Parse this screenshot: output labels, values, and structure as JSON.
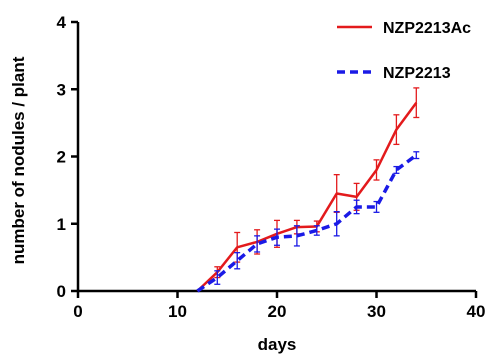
{
  "chart_data": {
    "type": "line",
    "xlabel": "days",
    "ylabel": "number of nodules / plant",
    "xlim": [
      0,
      40
    ],
    "ylim": [
      0,
      4
    ],
    "xticks": [
      0,
      10,
      20,
      30,
      40
    ],
    "yticks": [
      0,
      1,
      2,
      3,
      4
    ],
    "grid": false,
    "legend_position": "top-right",
    "series": [
      {
        "name": "NZP2213Ac",
        "color": "#e31a1c",
        "line_style": "solid",
        "x": [
          12,
          14,
          16,
          18,
          20,
          22,
          24,
          26,
          28,
          30,
          32,
          34
        ],
        "y": [
          0,
          0.28,
          0.65,
          0.73,
          0.85,
          0.95,
          0.96,
          1.45,
          1.4,
          1.8,
          2.4,
          2.8
        ],
        "error": [
          0,
          0.08,
          0.22,
          0.18,
          0.2,
          0.1,
          0.08,
          0.28,
          0.2,
          0.15,
          0.22,
          0.22
        ]
      },
      {
        "name": "NZP2213",
        "color": "#1a1ae6",
        "line_style": "dashed",
        "x": [
          12,
          14,
          16,
          18,
          20,
          22,
          24,
          26,
          28,
          30,
          32,
          34
        ],
        "y": [
          0,
          0.2,
          0.45,
          0.7,
          0.8,
          0.82,
          0.9,
          1.0,
          1.25,
          1.25,
          1.8,
          2.02
        ],
        "error": [
          0,
          0.1,
          0.12,
          0.12,
          0.12,
          0.15,
          0.07,
          0.18,
          0.1,
          0.08,
          0.05,
          0.05
        ]
      }
    ]
  }
}
